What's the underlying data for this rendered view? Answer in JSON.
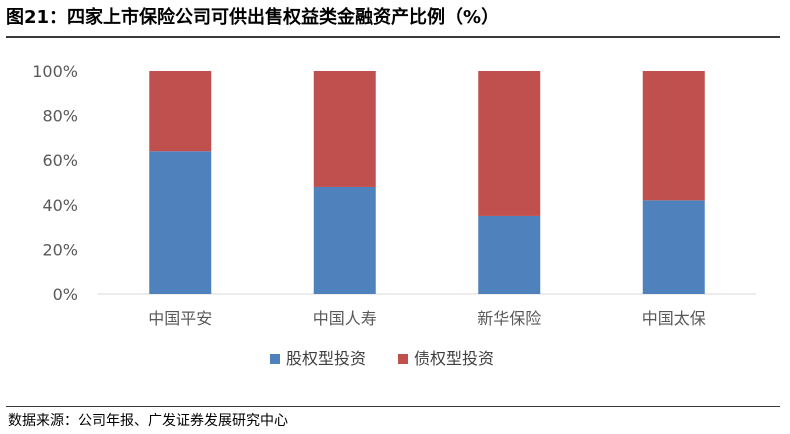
{
  "figure": {
    "title": "图21：四家上市保险公司可供出售权益类金融资产比例（%）",
    "source": "数据来源：公司年报、广发证券发展研究中心"
  },
  "colors": {
    "equity": "#4f81bd",
    "debt": "#c0504d",
    "axis_text": "#595959",
    "axis_line": "#d9d9d9"
  },
  "chart_data": {
    "type": "bar",
    "stacked": true,
    "title": "",
    "xlabel": "",
    "ylabel": "",
    "categories": [
      "中国平安",
      "中国人寿",
      "新华保险",
      "中国太保"
    ],
    "series": [
      {
        "name": "股权型投资",
        "color": "#4f81bd",
        "values": [
          64,
          48,
          35,
          42
        ]
      },
      {
        "name": "债权型投资",
        "color": "#c0504d",
        "values": [
          36,
          52,
          65,
          58
        ]
      }
    ],
    "ylim": [
      0,
      100
    ],
    "yticks": [
      "0%",
      "20%",
      "40%",
      "60%",
      "80%",
      "100%"
    ],
    "grid": false,
    "legend_position": "bottom"
  }
}
